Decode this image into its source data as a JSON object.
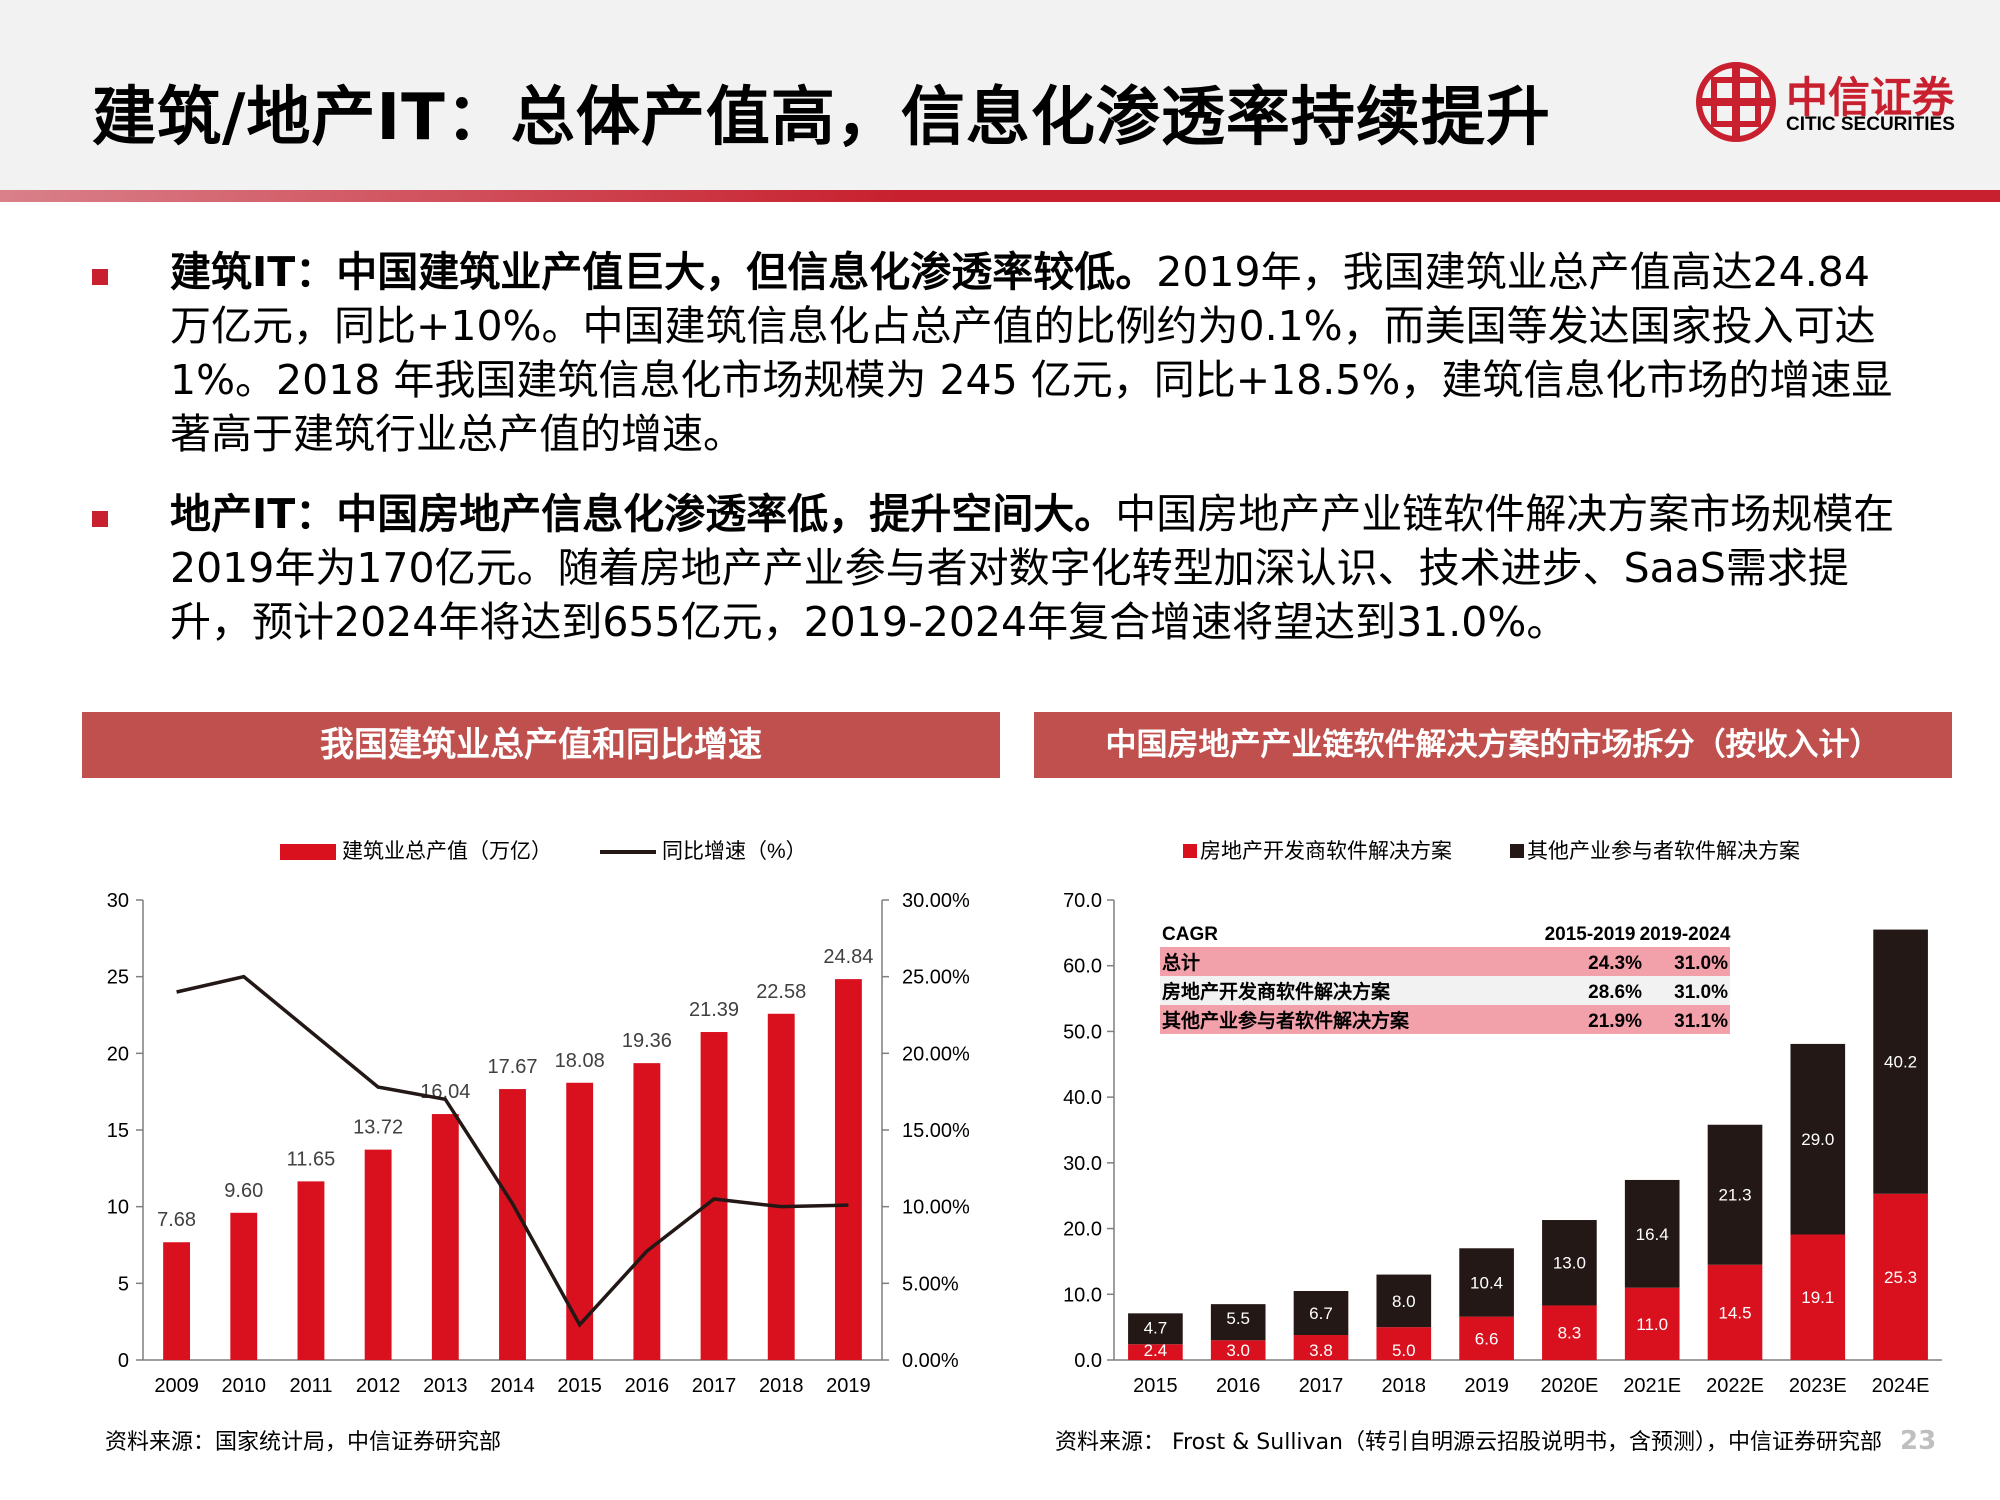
{
  "header": {
    "title": "建筑/地产IT：总体产值高，信息化渗透率持续提升",
    "logo_cn": "中信证券",
    "logo_en": "CITIC SECURITIES"
  },
  "bullets": [
    {
      "bold": "建筑IT：中国建筑业产值巨大，但信息化渗透率较低。",
      "text": "2019年，我国建筑业总产值高达24.84万亿元，同比+10%。中国建筑信息化占总产值的比例约为0.1%，而美国等发达国家投入可达1%。2018 年我国建筑信息化市场规模为 245 亿元，同比+18.5%，建筑信息化市场的增速显著高于建筑行业总产值的增速。"
    },
    {
      "bold": "地产IT：中国房地产信息化渗透率低，提升空间大。",
      "text": "中国房地产产业链软件解决方案市场规模在2019年为170亿元。随着房地产产业参与者对数字化转型加深认识、技术进步、SaaS需求提升，预计2024年将达到655亿元，2019-2024年复合增速将望达到31.0%。"
    }
  ],
  "chart_data": [
    {
      "type": "bar",
      "title": "我国建筑业总产值和同比增速",
      "categories": [
        "2009",
        "2010",
        "2011",
        "2012",
        "2013",
        "2014",
        "2015",
        "2016",
        "2017",
        "2018",
        "2019"
      ],
      "series": [
        {
          "name": "建筑业总产值（万亿）",
          "type": "bar",
          "values": [
            7.68,
            9.6,
            11.65,
            13.72,
            16.04,
            17.67,
            18.08,
            19.36,
            21.39,
            22.58,
            24.84
          ],
          "labels": [
            "7.68",
            "9.60",
            "11.65",
            "13.72",
            "16.04",
            "17.67",
            "18.08",
            "19.36",
            "21.39",
            "22.58",
            "24.84"
          ]
        },
        {
          "name": "同比增速（%）",
          "type": "line",
          "axis": "right",
          "values": [
            24.0,
            25.0,
            21.4,
            17.8,
            17.0,
            10.2,
            2.3,
            7.1,
            10.5,
            10.0,
            10.1
          ]
        }
      ],
      "ylim": [
        0,
        30
      ],
      "yticks": [
        "0",
        "5",
        "10",
        "15",
        "20",
        "25",
        "30"
      ],
      "y2lim": [
        0,
        30
      ],
      "y2ticks": [
        "0.00%",
        "5.00%",
        "10.00%",
        "15.00%",
        "20.00%",
        "25.00%",
        "30.00%"
      ],
      "legend": "top",
      "grid": false,
      "source": "资料来源：国家统计局，中信证券研究部"
    },
    {
      "type": "bar",
      "stacked": true,
      "title": "中国房地产产业链软件解决方案的市场拆分（按收入计）",
      "categories": [
        "2015",
        "2016",
        "2017",
        "2018",
        "2019",
        "2020E",
        "2021E",
        "2022E",
        "2023E",
        "2024E"
      ],
      "series": [
        {
          "name": "房地产开发商软件解决方案",
          "values": [
            2.4,
            3.0,
            3.8,
            5.0,
            6.6,
            8.3,
            11.0,
            14.5,
            19.1,
            25.3
          ]
        },
        {
          "name": "其他产业参与者软件解决方案",
          "values": [
            4.7,
            5.5,
            6.7,
            8.0,
            10.4,
            13.0,
            16.4,
            21.3,
            29.0,
            40.2
          ]
        }
      ],
      "ylim": [
        0,
        70
      ],
      "yticks": [
        "0.0",
        "10.0",
        "20.0",
        "30.0",
        "40.0",
        "50.0",
        "60.0",
        "70.0"
      ],
      "legend": "top",
      "grid": false,
      "inset_table": {
        "headers": [
          "CAGR",
          "2015-2019",
          "2019-2024"
        ],
        "rows": [
          [
            "总计",
            "24.3%",
            "31.0%"
          ],
          [
            "房地产开发商软件解决方案",
            "28.6%",
            "31.0%"
          ],
          [
            "其他产业参与者软件解决方案",
            "21.9%",
            "31.1%"
          ]
        ]
      },
      "source": "资料来源： Frost & Sullivan（转引自明源云招股说明书，含预测），中信证券研究部"
    }
  ],
  "page_number": "23",
  "colors": {
    "accent_red": "#c8202e",
    "bar_red": "#d9101e",
    "dark": "#231815",
    "panel_head": "#c0504d",
    "table_pink": "#f2a0aa"
  }
}
